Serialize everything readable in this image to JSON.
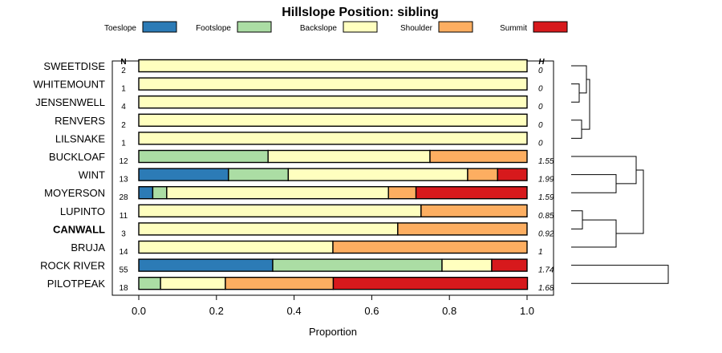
{
  "chart_data": {
    "type": "bar",
    "orientation": "horizontal-stacked",
    "title": "Hillslope Position: sibling",
    "xlabel": "Proportion",
    "xlim": [
      0,
      1
    ],
    "xticks": [
      "0.0",
      "0.2",
      "0.4",
      "0.6",
      "0.8",
      "1.0"
    ],
    "n_header": "N",
    "h_header": "H",
    "legend_position": "top",
    "series": [
      {
        "name": "Toeslope",
        "color": "#2c7bb6"
      },
      {
        "name": "Footslope",
        "color": "#abdda4"
      },
      {
        "name": "Backslope",
        "color": "#ffffbf"
      },
      {
        "name": "Shoulder",
        "color": "#fdae61"
      },
      {
        "name": "Summit",
        "color": "#d7191c"
      }
    ],
    "rows": [
      {
        "label": "SWEETDISE",
        "bold": false,
        "n": "2",
        "h": "0",
        "values": [
          0,
          0,
          1.0,
          0,
          0
        ]
      },
      {
        "label": "WHITEMOUNT",
        "bold": false,
        "n": "1",
        "h": "0",
        "values": [
          0,
          0,
          1.0,
          0,
          0
        ]
      },
      {
        "label": "JENSENWELL",
        "bold": false,
        "n": "4",
        "h": "0",
        "values": [
          0,
          0,
          1.0,
          0,
          0
        ]
      },
      {
        "label": "RENVERS",
        "bold": false,
        "n": "2",
        "h": "0",
        "values": [
          0,
          0,
          1.0,
          0,
          0
        ]
      },
      {
        "label": "LILSNAKE",
        "bold": false,
        "n": "1",
        "h": "0",
        "values": [
          0,
          0,
          1.0,
          0,
          0
        ]
      },
      {
        "label": "BUCKLOAF",
        "bold": false,
        "n": "12",
        "h": "1.55",
        "values": [
          0,
          0.333,
          0.417,
          0.25,
          0
        ]
      },
      {
        "label": "WINT",
        "bold": false,
        "n": "13",
        "h": "1.99",
        "values": [
          0.231,
          0.154,
          0.462,
          0.077,
          0.076
        ]
      },
      {
        "label": "MOYERSON",
        "bold": false,
        "n": "28",
        "h": "1.59",
        "values": [
          0.036,
          0.036,
          0.571,
          0.071,
          0.286
        ]
      },
      {
        "label": "LUPINTO",
        "bold": false,
        "n": "11",
        "h": "0.85",
        "values": [
          0,
          0,
          0.727,
          0.273,
          0
        ]
      },
      {
        "label": "CANWALL",
        "bold": true,
        "n": "3",
        "h": "0.92",
        "values": [
          0,
          0,
          0.667,
          0.333,
          0
        ]
      },
      {
        "label": "BRUJA",
        "bold": false,
        "n": "14",
        "h": "1",
        "values": [
          0,
          0,
          0.5,
          0.5,
          0
        ]
      },
      {
        "label": "ROCK RIVER",
        "bold": false,
        "n": "55",
        "h": "1.74",
        "values": [
          0.345,
          0.436,
          0.128,
          0,
          0.091
        ]
      },
      {
        "label": "PILOTPEAK",
        "bold": false,
        "n": "18",
        "h": "1.68",
        "values": [
          0,
          0.056,
          0.167,
          0.278,
          0.5
        ]
      }
    ],
    "dendrogram": "hierarchical clustering of rows"
  }
}
